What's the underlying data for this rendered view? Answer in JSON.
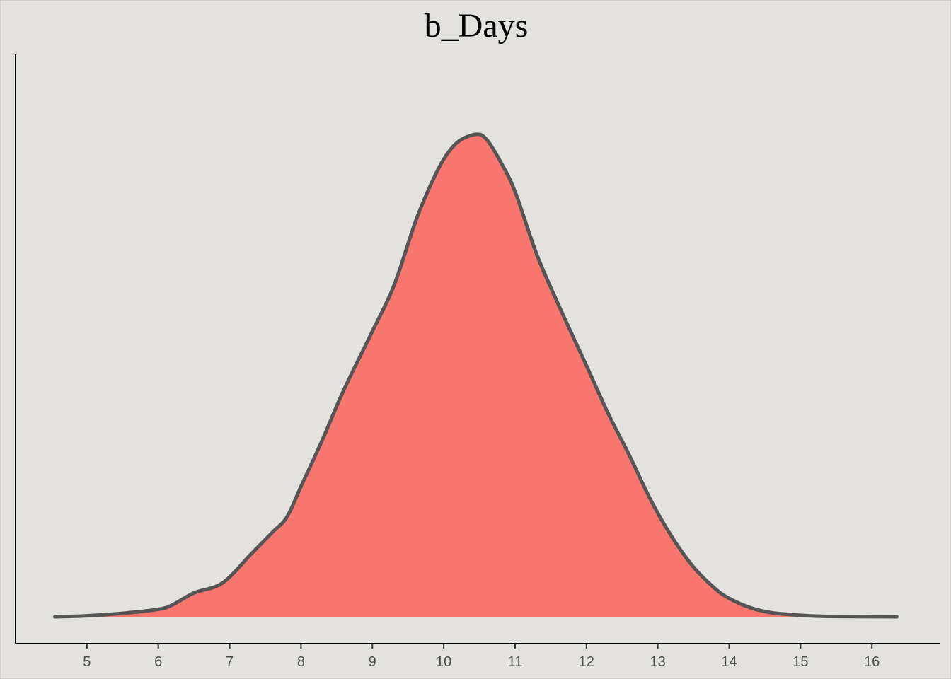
{
  "chart_data": {
    "type": "area",
    "title": "b_Days",
    "xlabel": "",
    "ylabel": "",
    "xlim": [
      4.0,
      16.95
    ],
    "ylim": [
      0,
      1.0
    ],
    "x_ticks": [
      5,
      6,
      7,
      8,
      9,
      10,
      11,
      12,
      13,
      14,
      15,
      16
    ],
    "y_ticks_shown": false,
    "grid": false,
    "legend": "none",
    "series": [
      {
        "x": [
          4.55,
          5.0,
          5.5,
          6.0,
          6.2,
          6.5,
          6.9,
          7.3,
          7.6,
          7.8,
          8.0,
          8.3,
          8.6,
          9.0,
          9.3,
          9.6,
          9.8,
          10.0,
          10.2,
          10.45,
          10.6,
          10.8,
          11.0,
          11.3,
          11.6,
          12.0,
          12.3,
          12.6,
          12.9,
          13.2,
          13.5,
          13.8,
          14.0,
          14.3,
          14.6,
          15.0,
          15.3,
          15.6,
          16.0,
          16.35
        ],
        "y": [
          0.0,
          0.002,
          0.007,
          0.015,
          0.024,
          0.048,
          0.068,
          0.126,
          0.17,
          0.2,
          0.262,
          0.356,
          0.456,
          0.574,
          0.665,
          0.793,
          0.863,
          0.92,
          0.955,
          0.97,
          0.96,
          0.914,
          0.855,
          0.73,
          0.63,
          0.505,
          0.41,
          0.325,
          0.235,
          0.16,
          0.1,
          0.057,
          0.037,
          0.018,
          0.008,
          0.003,
          0.001,
          0.0005,
          0.0002,
          0.0
        ]
      }
    ],
    "colors": {
      "fill": "#F8766D",
      "line": "#555555",
      "panel": "#E3E2DE",
      "axis": "#000000",
      "tick_text": "#4d4d4d"
    }
  }
}
